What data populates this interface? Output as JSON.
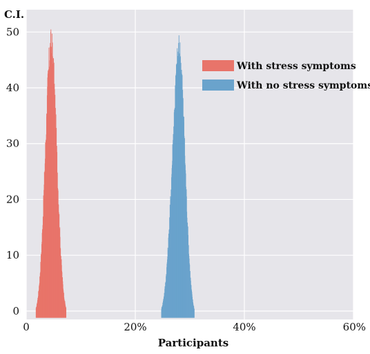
{
  "chart_data": {
    "type": "histogram",
    "ylabel": "C.I.",
    "xlabel": "Participants",
    "x_ticks": [
      "0",
      "20%",
      "40%",
      "60%"
    ],
    "y_ticks": [
      "0",
      "10",
      "20",
      "30",
      "40",
      "50"
    ],
    "xlim": [
      0,
      60
    ],
    "ylim": [
      -1.5,
      54
    ],
    "grid": true,
    "legend_position": "top-right",
    "series": [
      {
        "name": "With stress symptoms",
        "color": "#e8746a",
        "center": 4.5,
        "x": [
          2.0,
          2.5,
          3.0,
          3.5,
          4.0,
          4.5,
          5.0,
          5.5,
          6.0,
          6.5,
          7.0
        ],
        "values": [
          1,
          5,
          15,
          33,
          49,
          52,
          43,
          28,
          13,
          4,
          1
        ]
      },
      {
        "name": "With no stress symptoms",
        "color": "#6aa3cc",
        "center": 28.0,
        "x": [
          25.0,
          25.5,
          26.0,
          26.5,
          27.0,
          27.5,
          28.0,
          28.5,
          29.0,
          29.5,
          30.0,
          30.5
        ],
        "values": [
          1,
          3,
          9,
          22,
          38,
          49,
          51,
          42,
          26,
          11,
          3,
          1
        ]
      }
    ]
  }
}
